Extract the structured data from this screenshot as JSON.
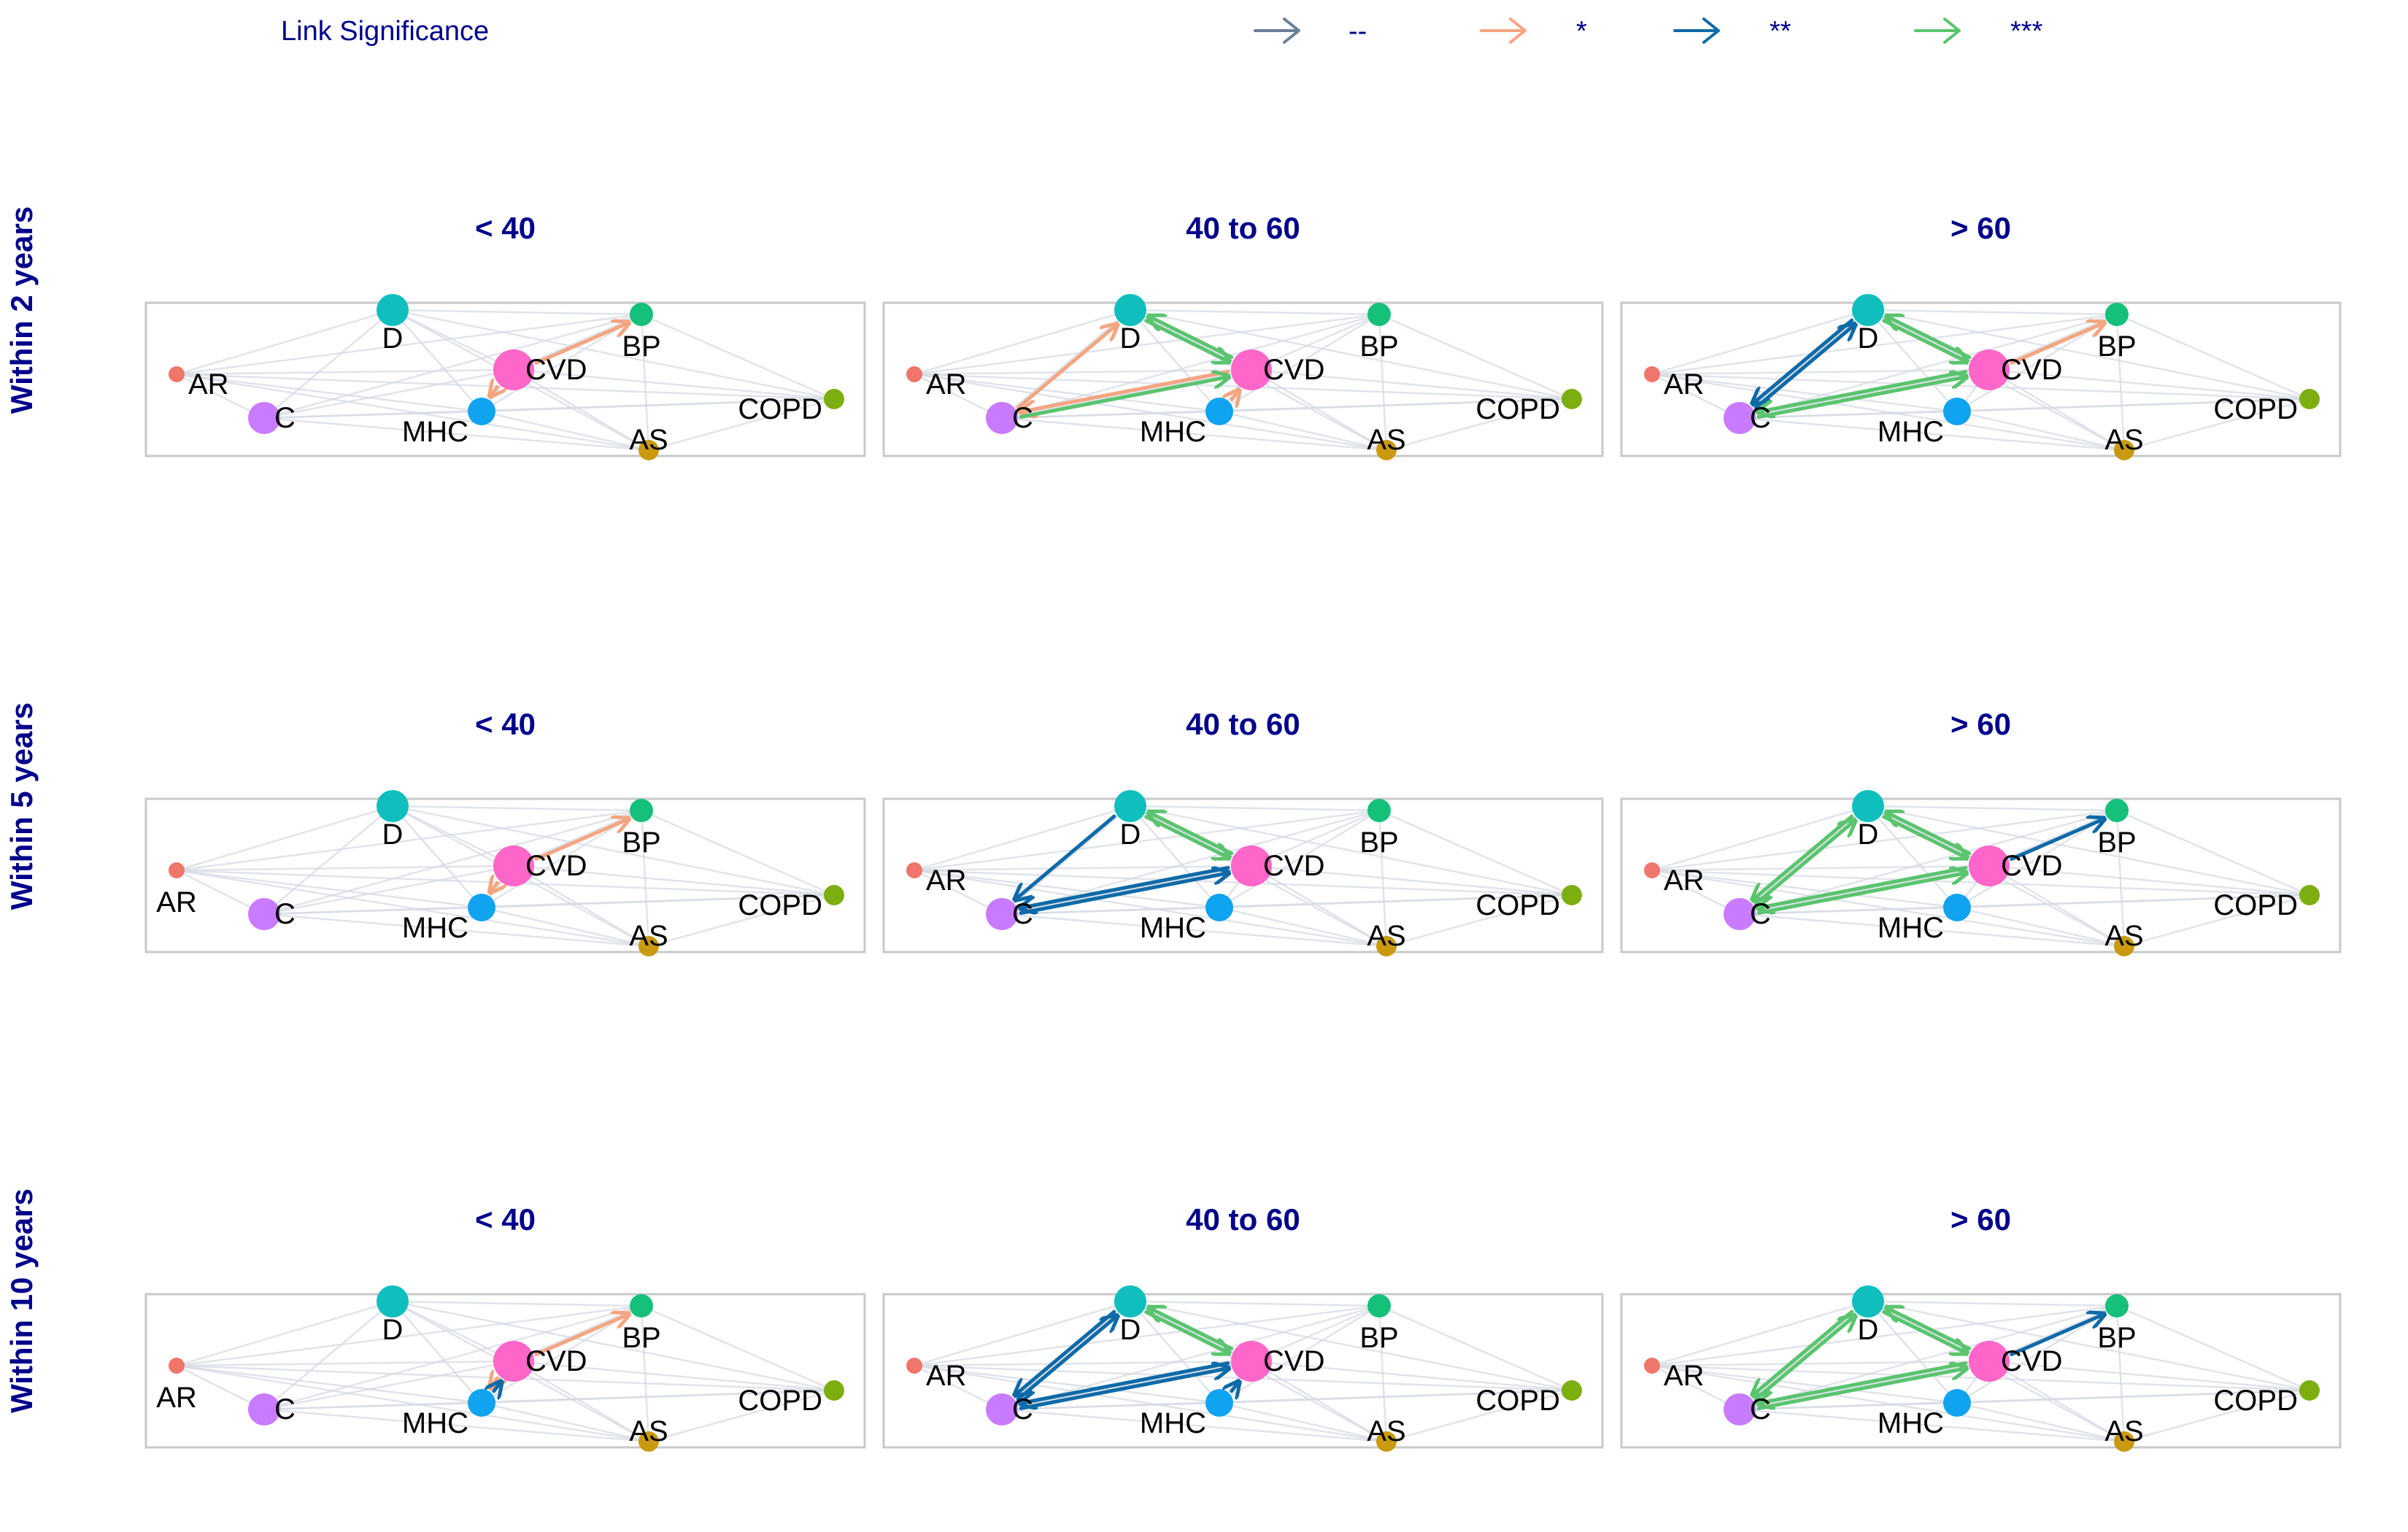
{
  "legend": {
    "title": "Link Significance",
    "items": [
      {
        "symbol": "--",
        "level": "ns",
        "color": "#6b7f99"
      },
      {
        "symbol": "*",
        "level": "p1",
        "color": "#f4a582"
      },
      {
        "symbol": "**",
        "level": "p2",
        "color": "#0e6aa8"
      },
      {
        "symbol": "***",
        "level": "p3",
        "color": "#5ac46e"
      }
    ]
  },
  "colors": {
    "faint_edge": "#d5dbe3",
    "AR": "#f0756b",
    "D": "#10bfbd",
    "BP": "#15c07a",
    "CVD": "#ff66c9",
    "C": "#c97bff",
    "MHC": "#10a3f0",
    "AS": "#c99a10",
    "COPD": "#7cae10"
  },
  "nodes": [
    "AR",
    "D",
    "BP",
    "CVD",
    "C",
    "MHC",
    "AS",
    "COPD"
  ],
  "rows": [
    {
      "label": "Within 2 years",
      "panels": [
        {
          "title": "< 40",
          "edges": [
            {
              "from": "CVD",
              "to": "BP",
              "sig": "p1"
            },
            {
              "from": "CVD",
              "to": "MHC",
              "sig": "p1"
            }
          ]
        },
        {
          "title": "40 to 60",
          "edges": [
            {
              "from": "C",
              "to": "D",
              "sig": "p1"
            },
            {
              "from": "CVD",
              "to": "C",
              "sig": "p1"
            },
            {
              "from": "C",
              "to": "CVD",
              "sig": "p3"
            },
            {
              "from": "D",
              "to": "CVD",
              "sig": "p3"
            },
            {
              "from": "CVD",
              "to": "D",
              "sig": "p3"
            },
            {
              "from": "MHC",
              "to": "CVD",
              "sig": "p1"
            }
          ]
        },
        {
          "title": "> 60",
          "edges": [
            {
              "from": "C",
              "to": "D",
              "sig": "p2"
            },
            {
              "from": "D",
              "to": "C",
              "sig": "p2"
            },
            {
              "from": "C",
              "to": "CVD",
              "sig": "p3"
            },
            {
              "from": "CVD",
              "to": "C",
              "sig": "p3"
            },
            {
              "from": "D",
              "to": "CVD",
              "sig": "p3"
            },
            {
              "from": "CVD",
              "to": "D",
              "sig": "p3"
            },
            {
              "from": "CVD",
              "to": "BP",
              "sig": "p1"
            }
          ]
        }
      ]
    },
    {
      "label": "Within 5 years",
      "panels": [
        {
          "title": "< 40",
          "edges": [
            {
              "from": "CVD",
              "to": "BP",
              "sig": "p1"
            },
            {
              "from": "CVD",
              "to": "MHC",
              "sig": "p1"
            }
          ]
        },
        {
          "title": "40 to 60",
          "edges": [
            {
              "from": "D",
              "to": "C",
              "sig": "p2"
            },
            {
              "from": "C",
              "to": "CVD",
              "sig": "p2"
            },
            {
              "from": "CVD",
              "to": "C",
              "sig": "p2"
            },
            {
              "from": "D",
              "to": "CVD",
              "sig": "p3"
            },
            {
              "from": "CVD",
              "to": "D",
              "sig": "p3"
            }
          ]
        },
        {
          "title": "> 60",
          "edges": [
            {
              "from": "C",
              "to": "D",
              "sig": "p3"
            },
            {
              "from": "D",
              "to": "C",
              "sig": "p3"
            },
            {
              "from": "C",
              "to": "CVD",
              "sig": "p3"
            },
            {
              "from": "CVD",
              "to": "C",
              "sig": "p3"
            },
            {
              "from": "D",
              "to": "CVD",
              "sig": "p3"
            },
            {
              "from": "CVD",
              "to": "D",
              "sig": "p3"
            },
            {
              "from": "CVD",
              "to": "BP",
              "sig": "p2"
            }
          ]
        }
      ]
    },
    {
      "label": "Within 10 years",
      "panels": [
        {
          "title": "< 40",
          "edges": [
            {
              "from": "CVD",
              "to": "BP",
              "sig": "p1"
            },
            {
              "from": "CVD",
              "to": "MHC",
              "sig": "p1"
            },
            {
              "from": "MHC",
              "to": "CVD",
              "sig": "p2"
            }
          ]
        },
        {
          "title": "40 to 60",
          "edges": [
            {
              "from": "C",
              "to": "D",
              "sig": "p2"
            },
            {
              "from": "D",
              "to": "C",
              "sig": "p2"
            },
            {
              "from": "C",
              "to": "CVD",
              "sig": "p2"
            },
            {
              "from": "CVD",
              "to": "C",
              "sig": "p2"
            },
            {
              "from": "D",
              "to": "CVD",
              "sig": "p3"
            },
            {
              "from": "CVD",
              "to": "D",
              "sig": "p3"
            },
            {
              "from": "MHC",
              "to": "CVD",
              "sig": "p2"
            }
          ]
        },
        {
          "title": "> 60",
          "edges": [
            {
              "from": "C",
              "to": "D",
              "sig": "p3"
            },
            {
              "from": "D",
              "to": "C",
              "sig": "p3"
            },
            {
              "from": "C",
              "to": "CVD",
              "sig": "p3"
            },
            {
              "from": "CVD",
              "to": "C",
              "sig": "p3"
            },
            {
              "from": "D",
              "to": "CVD",
              "sig": "p3"
            },
            {
              "from": "CVD",
              "to": "D",
              "sig": "p3"
            },
            {
              "from": "CVD",
              "to": "BP",
              "sig": "p2"
            }
          ]
        }
      ]
    }
  ]
}
